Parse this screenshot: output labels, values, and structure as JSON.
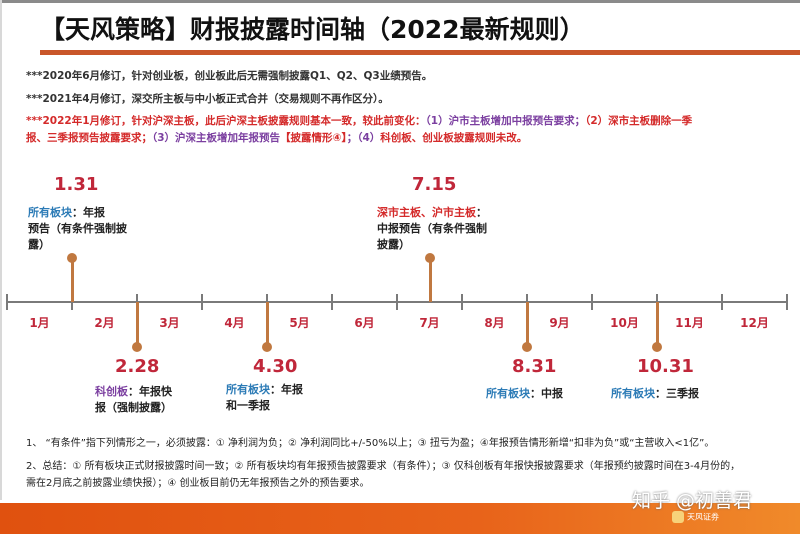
{
  "title": "【天风策略】财报披露时间轴（2022最新规则）",
  "notes": [
    {
      "text": "***2020年6月修订，针对创业板，创业板此后无需强制披露Q1、Q2、Q3业绩预告。"
    },
    {
      "text": "***2021年4月修订，深交所主板与中小板正式合并（交易规则不再作区分）。"
    },
    {
      "line1_red_a": "***2022年1月修订，针对沪深主板，此后沪深主板披露规则基本一致，较此前变化：",
      "line1_purple": "（1）沪市主板增加中报预告要求；",
      "line1_red_b": "（2）深市主板删除一季",
      "line2_red": "报、三季报预告披露要求；",
      "line2_purple_a": "（3）沪深主板增加年报预告",
      "line2_red_c": "【披露情形④】",
      "line2_purple_b": "；（4）",
      "line2_red_d": "科创板、创业板披露规则未改。"
    }
  ],
  "timeline": {
    "months": [
      "1月",
      "2月",
      "3月",
      "4月",
      "5月",
      "6月",
      "7月",
      "8月",
      "9月",
      "10月",
      "11月",
      "12月"
    ],
    "events": [
      {
        "date": "1.31",
        "board": "所有板块",
        "board_color": "#2c7bb6",
        "desc_first": "：年报",
        "desc_rest": "预告（有条件强制披露）",
        "position": "above"
      },
      {
        "date": "2.28",
        "board": "科创板",
        "board_color": "#7b3fa0",
        "desc_first": "：年报快",
        "desc_rest": "报（强制披露）",
        "position": "below"
      },
      {
        "date": "4.30",
        "board": "所有板块",
        "board_color": "#2c7bb6",
        "desc_first": "：年报",
        "desc_rest": "和一季报",
        "position": "below"
      },
      {
        "date": "7.15",
        "board": "深市主板、沪市主板",
        "board_color": "#d42a2a",
        "desc_first": "：",
        "desc_rest": "中报预告（有条件强制披露）",
        "position": "above"
      },
      {
        "date": "8.31",
        "board": "所有板块",
        "board_color": "#2c7bb6",
        "desc_first": "：中报",
        "desc_rest": "",
        "position": "below"
      },
      {
        "date": "10.31",
        "board": "所有板块",
        "board_color": "#2c7bb6",
        "desc_first": "：三季报",
        "desc_rest": "",
        "position": "below"
      }
    ]
  },
  "footnotes": [
    "1、 “有条件”指下列情形之一，必须披露：① 净利润为负；② 净利润同比+/-50%以上；③ 扭亏为盈；④年报预告情形新增“扣非为负”或“主营收入<1亿”。",
    "2、总结：① 所有板块正式财报披露时间一致；② 所有板块均有年报预告披露要求（有条件）；③ 仅科创板有年报快报披露要求（年报预约披露时间在3-4月份的，",
    "需在2月底之前披露业绩快报）；④ 创业板目前仍无年报预告之外的预告要求。"
  ],
  "watermark": "知乎 @初善君",
  "logo_text": "天风证券",
  "colors": {
    "accent": "#c9562a",
    "date_red": "#c0273a",
    "stem": "#c07840",
    "band": "#e0510f"
  }
}
